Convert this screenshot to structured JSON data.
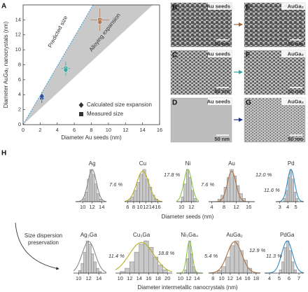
{
  "chart_data": [
    {
      "type": "scatter",
      "panel": "A",
      "xlabel": "Diameter Au seeds (nm)",
      "ylabel": "Diameter AuGa₂ nanocrystals (nm)",
      "xlim": [
        0,
        16
      ],
      "ylim": [
        0,
        16
      ],
      "xticks": [
        0,
        2,
        4,
        6,
        8,
        10,
        12,
        14,
        16
      ],
      "yticks": [
        0,
        2,
        4,
        6,
        8,
        10,
        12,
        14
      ],
      "predicted_line": {
        "x": [
          0,
          8.2
        ],
        "values": [
          0,
          16
        ],
        "color": "#3a9ad9",
        "label": "Predicted size"
      },
      "expansion_region": {
        "x": [
          0,
          8.2,
          15.2
        ],
        "values": [
          0,
          16,
          16
        ],
        "color": "#c9c9c9",
        "label": "Alloying expansion"
      },
      "series": [
        {
          "name": "Calculated size expansion",
          "marker": "diamond",
          "x": [
            2.2,
            5,
            9
          ],
          "values": [
            3.8,
            7.3,
            13.7
          ],
          "colors": [
            "#2b4f9e",
            "#3aa6a0",
            "#b07a55"
          ]
        },
        {
          "name": "Measured size",
          "marker": "square",
          "x": [
            2.2,
            5,
            9
          ],
          "values": [
            3.6,
            7.5,
            14
          ],
          "x_err": [
            0.2,
            0.5,
            1.1
          ],
          "y_err": [
            0.7,
            0.9,
            1.5
          ],
          "colors": [
            "#2b4f9e",
            "#3aa6a0",
            "#b07a55"
          ]
        }
      ]
    },
    {
      "type": "histogram",
      "title": "Ag",
      "label_color": "#888888",
      "xlim": [
        8.5,
        15
      ],
      "xticks": [
        10,
        12,
        14
      ],
      "bins": [
        10,
        10.5,
        11,
        11.5,
        12,
        12.5,
        13,
        13.5,
        14
      ],
      "counts": [
        10,
        30,
        70,
        100,
        85,
        55,
        25,
        8
      ],
      "fit": {
        "mean": 12,
        "sd": 0.9,
        "peak": 100,
        "color": "#8a8a8a"
      },
      "dispersion": {
        "value": 7.6,
        "label": "7.6 %"
      }
    },
    {
      "type": "histogram",
      "title": "Cu",
      "label_color": "#888888",
      "xlim": [
        5,
        17.5
      ],
      "xticks": [
        6,
        8,
        10,
        12,
        14,
        16
      ],
      "bins": [
        6,
        7,
        8,
        9,
        10,
        11,
        12,
        13,
        14,
        15,
        16
      ],
      "counts": [
        5,
        15,
        35,
        60,
        85,
        100,
        70,
        45,
        20,
        8
      ],
      "fit": {
        "mean": 11,
        "sd": 2,
        "peak": 95,
        "color": "#b4b024"
      },
      "dispersion": {
        "value": 17.8,
        "label": "17.8 %"
      }
    },
    {
      "type": "histogram",
      "title": "Ni",
      "label_color": "#888888",
      "xlim": [
        9,
        13.5
      ],
      "xticks": [
        10,
        12
      ],
      "bins": [
        10,
        10.5,
        11,
        11.5,
        12,
        12.5,
        13
      ],
      "counts": [
        15,
        55,
        100,
        75,
        35,
        10
      ],
      "fit": {
        "mean": 11.3,
        "sd": 0.8,
        "peak": 100,
        "color": "#8cc63e"
      },
      "dispersion": {
        "value": 7.6,
        "label": "7.6 %"
      }
    },
    {
      "type": "histogram",
      "title": "Au",
      "label_color": "#888888",
      "xlim": [
        3,
        18
      ],
      "xticks": [
        4,
        8,
        12,
        16
      ],
      "bins": [
        6,
        7,
        8,
        9,
        10,
        11,
        12,
        13,
        14,
        15
      ],
      "counts": [
        8,
        20,
        45,
        75,
        100,
        80,
        50,
        25,
        10
      ],
      "fit": {
        "mean": 10.5,
        "sd": 1.4,
        "peak": 95,
        "color": "#b07040"
      },
      "dispersion": {
        "value": 12.0,
        "label": "12.0 %"
      }
    },
    {
      "type": "histogram",
      "title": "Pd",
      "label_color": "#888888",
      "xlim": [
        2.5,
        6
      ],
      "xticks": [
        3,
        4,
        5
      ],
      "bins": [
        3.5,
        3.75,
        4,
        4.25,
        4.5,
        4.75,
        5,
        5.25
      ],
      "counts": [
        10,
        35,
        75,
        100,
        70,
        30,
        10
      ],
      "fit": {
        "mean": 4.4,
        "sd": 0.45,
        "peak": 100,
        "color": "#2a8cc8"
      },
      "dispersion": {
        "value": 11.6,
        "label": "11.6 %"
      }
    },
    {
      "type": "histogram",
      "title": "Ag₃Ga",
      "label_color": "#888888",
      "xlim": [
        9,
        15.5
      ],
      "xticks": [
        10,
        12,
        14
      ],
      "bins": [
        10,
        10.5,
        11,
        11.5,
        12,
        12.5,
        13,
        13.5,
        14,
        14.5
      ],
      "counts": [
        8,
        30,
        65,
        100,
        90,
        60,
        35,
        15,
        5
      ],
      "fit": {
        "mean": 12,
        "sd": 1.3,
        "peak": 98,
        "color": "#8a8a8a"
      },
      "dispersion": {
        "value": 11.4,
        "label": "11.4 %"
      }
    },
    {
      "type": "histogram",
      "title": "Cu₃Ga",
      "label_color": "#b4b024",
      "xlim": [
        9,
        21
      ],
      "xticks": [
        10,
        12,
        14,
        16,
        18,
        20
      ],
      "bins": [
        10,
        11,
        12,
        13,
        14,
        15,
        16,
        17,
        18,
        19,
        20
      ],
      "counts": [
        5,
        15,
        35,
        65,
        90,
        100,
        80,
        50,
        25,
        10
      ],
      "fit": {
        "mean": 14.5,
        "sd": 2.6,
        "peak": 95,
        "color": "#b4b024"
      },
      "dispersion": {
        "value": 18.8,
        "label": "18.8 %"
      }
    },
    {
      "type": "histogram",
      "title": "Ni₃Ga₄",
      "label_color": "#8cc63e",
      "xlim": [
        9,
        15.5
      ],
      "xticks": [
        10,
        12,
        14
      ],
      "bins": [
        11,
        11.5,
        12,
        12.5,
        13,
        13.5,
        14
      ],
      "counts": [
        10,
        45,
        100,
        60,
        20,
        5
      ],
      "fit": {
        "mean": 12.2,
        "sd": 0.66,
        "peak": 100,
        "color": "#8cc63e"
      },
      "dispersion": {
        "value": 5.4,
        "label": "5.4 %"
      }
    },
    {
      "type": "histogram",
      "title": "AuGa₂",
      "label_color": "#b07040",
      "xlim": [
        7,
        19
      ],
      "xticks": [
        8,
        10,
        12,
        14,
        16,
        18
      ],
      "bins": [
        9,
        10,
        11,
        12,
        13,
        14,
        15,
        16,
        17
      ],
      "counts": [
        8,
        20,
        50,
        85,
        100,
        70,
        40,
        15
      ],
      "fit": {
        "mean": 13,
        "sd": 1.7,
        "peak": 97,
        "color": "#b07040"
      },
      "dispersion": {
        "value": 12.9,
        "label": "12.9 %"
      }
    },
    {
      "type": "histogram",
      "title": "PdGa",
      "label_color": "#2a8cc8",
      "xlim": [
        3.5,
        7.5
      ],
      "xticks": [
        4,
        5,
        6,
        7
      ],
      "bins": [
        5,
        5.25,
        5.5,
        5.75,
        6,
        6.25,
        6.5,
        6.75
      ],
      "counts": [
        10,
        35,
        80,
        100,
        70,
        35,
        10
      ],
      "fit": {
        "mean": 5.8,
        "sd": 0.55,
        "peak": 100,
        "color": "#2a8cc8"
      },
      "dispersion": {
        "value": 11.3,
        "label": "11.3 %"
      }
    }
  ],
  "images": [
    {
      "panel": "B",
      "label": "Au seeds",
      "scale_bar": "50 nm",
      "label_color": "#333333"
    },
    {
      "panel": "E",
      "label": "AuGa₂",
      "scale_bar": "50 nm",
      "label_color": "#b07a55"
    },
    {
      "panel": "C",
      "label": "Au seeds",
      "scale_bar": "50 nm",
      "label_color": "#333333"
    },
    {
      "panel": "F",
      "label": "AuGa₂",
      "scale_bar": "50 nm",
      "label_color": "#3aa6a0"
    },
    {
      "panel": "D",
      "label": "Au seeds",
      "scale_bar": "50 nm",
      "label_color": "#333333"
    },
    {
      "panel": "G",
      "label": "AuGa₂",
      "scale_bar": "50 nm",
      "label_color": "#1f2f8f"
    }
  ],
  "panel_h": {
    "label": "H",
    "top_axis_label": "Diameter seeds (nm)",
    "bottom_axis_label": "Diameter intermetallic nanocrystals (nm)",
    "note": [
      "Size dispersion",
      "preservation"
    ]
  }
}
